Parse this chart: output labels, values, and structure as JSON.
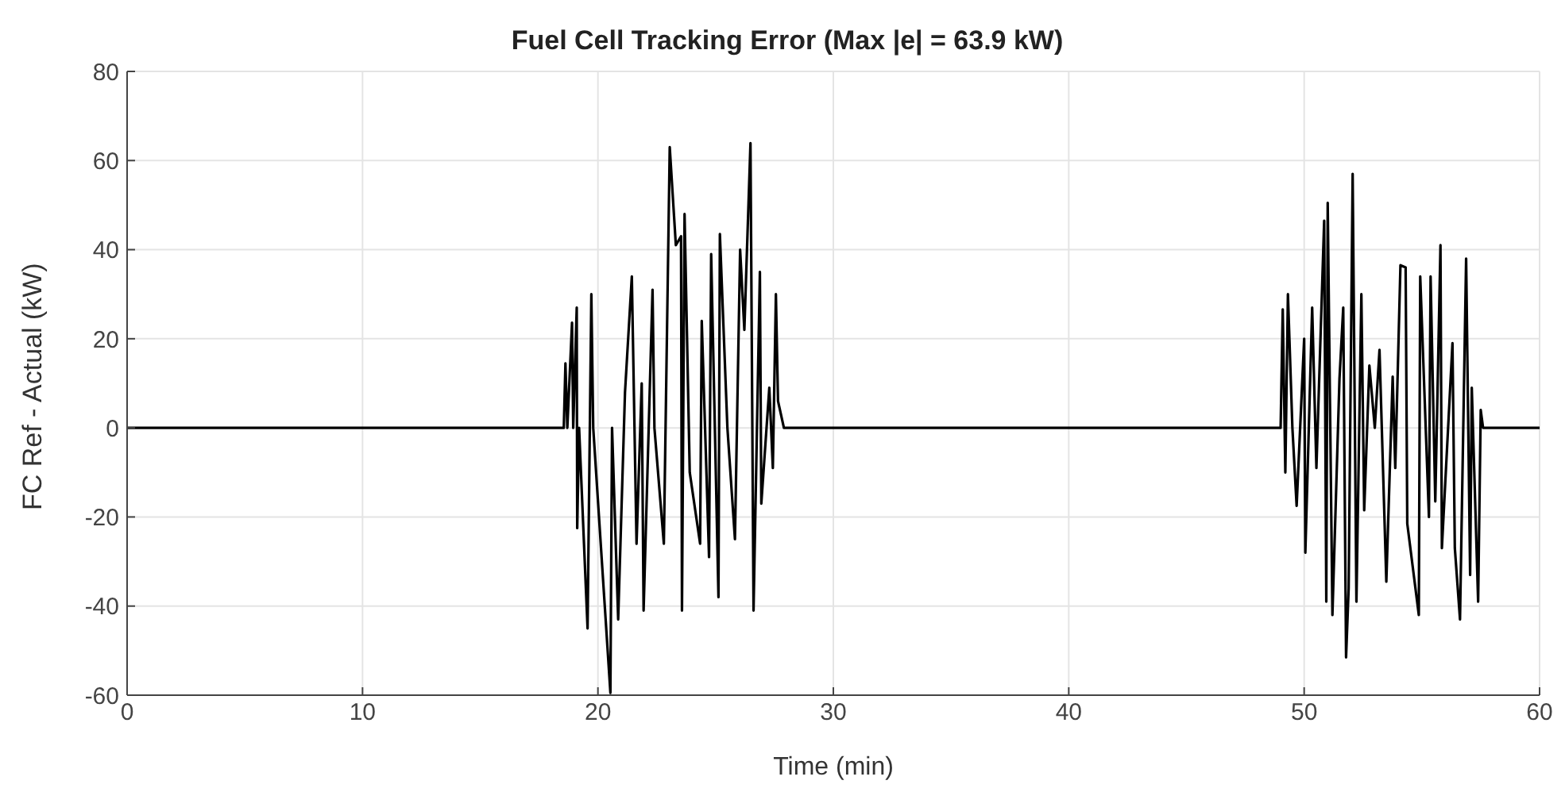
{
  "chart_data": {
    "type": "line",
    "title": "Fuel Cell Tracking Error (Max |e| = 63.9 kW)",
    "xlabel": "Time (min)",
    "ylabel": "FC Ref - Actual (kW)",
    "x": [
      0,
      18.55,
      18.62,
      18.7,
      18.9,
      18.95,
      19.1,
      19.12,
      19.2,
      19.56,
      19.72,
      19.8,
      20.53,
      20.6,
      20.86,
      21.15,
      21.44,
      21.64,
      21.86,
      21.94,
      22.32,
      22.4,
      22.8,
      23.05,
      23.31,
      23.53,
      23.57,
      23.68,
      23.9,
      24.34,
      24.41,
      24.72,
      24.81,
      25.12,
      25.18,
      25.5,
      25.82,
      26.04,
      26.22,
      26.48,
      26.61,
      26.88,
      26.94,
      27.28,
      27.43,
      27.56,
      27.65,
      27.9,
      49.0,
      49.09,
      49.2,
      49.31,
      49.5,
      49.68,
      50.0,
      50.05,
      50.34,
      50.52,
      50.85,
      50.94,
      51.0,
      51.2,
      51.5,
      51.66,
      51.78,
      51.89,
      52.06,
      52.22,
      52.43,
      52.55,
      52.77,
      53.0,
      53.2,
      53.49,
      53.76,
      53.87,
      54.09,
      54.31,
      54.38,
      54.87,
      54.93,
      55.3,
      55.37,
      55.57,
      55.79,
      55.85,
      56.3,
      56.4,
      56.62,
      56.88,
      57.05,
      57.12,
      57.39,
      57.5,
      57.6,
      60
    ],
    "series": [
      {
        "color": "#000000",
        "values": [
          0,
          0,
          14.5,
          0,
          23.6,
          0,
          27,
          -22.5,
          0,
          -45,
          30,
          0,
          -59.5,
          0,
          -43,
          8,
          34,
          -26,
          10,
          -41,
          31,
          0,
          -26,
          63,
          41,
          43,
          -41,
          48,
          -10,
          -26,
          24,
          -29,
          39,
          -38,
          43.5,
          0,
          -25,
          40,
          22,
          63.9,
          -41,
          35,
          -17,
          9,
          -9,
          30,
          6,
          0,
          0,
          26.6,
          -10,
          30,
          0,
          -17.5,
          20,
          -28,
          27,
          -9,
          46.5,
          -39,
          50.5,
          -42,
          11,
          27,
          -51.5,
          -36,
          57,
          -39,
          30,
          -18.5,
          14,
          0,
          17.5,
          -34.5,
          11.5,
          -9,
          36.5,
          36,
          -21.5,
          -42,
          34,
          -20,
          34,
          -16.5,
          41,
          -27,
          19,
          -27,
          -43,
          38,
          -33,
          9,
          -39,
          4,
          0,
          0
        ]
      }
    ],
    "xlim": [
      0,
      60
    ],
    "xticks": [
      0,
      10,
      20,
      30,
      40,
      50,
      60
    ],
    "ylim": [
      -60,
      80
    ],
    "yticks": [
      -60,
      -40,
      -20,
      0,
      20,
      40,
      60,
      80
    ],
    "grid": true,
    "legend": false,
    "marker": "none",
    "line_style": "solid"
  }
}
